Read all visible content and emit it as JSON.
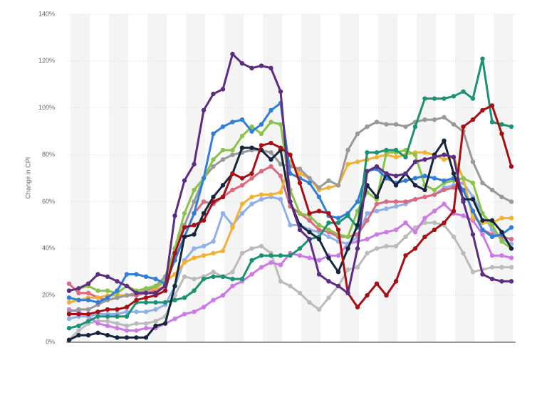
{
  "chart_data": {
    "type": "line",
    "y_label": "Change in CPI",
    "ylim": [
      0,
      140
    ],
    "yticks": [
      {
        "value": 0,
        "label": "0%"
      },
      {
        "value": 20,
        "label": "20%"
      },
      {
        "value": 40,
        "label": "40%"
      },
      {
        "value": 60,
        "label": "60%"
      },
      {
        "value": 80,
        "label": "80%"
      },
      {
        "value": 100,
        "label": "100%"
      },
      {
        "value": 120,
        "label": "120%"
      },
      {
        "value": 140,
        "label": "140%"
      }
    ],
    "grid": true,
    "series": [
      {
        "color": "#bbbbbb",
        "values": [
          1,
          5,
          8,
          9,
          9,
          8,
          7,
          8,
          8,
          9,
          11,
          20,
          28,
          27,
          28,
          30,
          28,
          30,
          38,
          40,
          41,
          38,
          26,
          24,
          21,
          17,
          14,
          19,
          24,
          31,
          32,
          38,
          40,
          41,
          41,
          45,
          49,
          51,
          51,
          50,
          45,
          38,
          30,
          31,
          32,
          32,
          32
        ]
      },
      {
        "color": "#cc7ae6",
        "values": [
          14,
          13,
          11,
          8,
          7,
          6,
          5,
          5,
          6,
          6,
          8,
          10,
          12,
          13,
          15,
          18,
          20,
          24,
          26,
          29,
          32,
          34,
          33,
          38,
          37,
          36,
          35,
          37,
          37,
          42,
          43,
          44,
          46,
          47,
          48,
          51,
          47,
          53,
          56,
          59,
          55,
          54,
          52,
          46,
          37,
          37,
          36
        ]
      },
      {
        "color": "#8fb0ea",
        "values": [
          10,
          11,
          11,
          12,
          12,
          12,
          13,
          13,
          13,
          14,
          16,
          24,
          35,
          40,
          41,
          43,
          55,
          50,
          55,
          59,
          61,
          62,
          61,
          50,
          50,
          48,
          47,
          45,
          43,
          42,
          45,
          55,
          56,
          57,
          58,
          59,
          61,
          62,
          63,
          66,
          67,
          68,
          62,
          55,
          48,
          44,
          42
        ]
      },
      {
        "color": "#d96a80",
        "values": [
          25,
          21,
          21,
          19,
          18,
          19,
          20,
          20,
          21,
          22,
          24,
          36,
          45,
          55,
          60,
          59,
          62,
          65,
          67,
          70,
          73,
          75,
          71,
          58,
          55,
          52,
          48,
          47,
          45,
          45,
          46,
          52,
          59,
          60,
          60,
          60,
          61,
          62,
          63,
          65,
          66,
          65,
          56,
          48,
          46,
          45,
          44
        ]
      },
      {
        "color": "#f2b134",
        "values": [
          17,
          18,
          19,
          19,
          20,
          20,
          20,
          21,
          22,
          23,
          26,
          29,
          34,
          36,
          37,
          38,
          39,
          49,
          59,
          62,
          63,
          63,
          64,
          77,
          72,
          70,
          65,
          66,
          67,
          76,
          77,
          78,
          79,
          80,
          79,
          80,
          81,
          81,
          80,
          78,
          79,
          70,
          53,
          51,
          51,
          53,
          53
        ]
      },
      {
        "color": "#999999",
        "values": [
          13,
          14,
          14,
          16,
          18,
          19,
          20,
          21,
          22,
          24,
          28,
          40,
          50,
          60,
          70,
          75,
          78,
          80,
          81,
          82,
          82,
          81,
          76,
          75,
          74,
          70,
          66,
          69,
          67,
          82,
          89,
          92,
          94,
          93,
          93,
          92,
          94,
          95,
          95,
          96,
          93,
          90,
          77,
          68,
          65,
          62,
          60
        ]
      },
      {
        "color": "#8bc34a",
        "values": [
          22,
          23,
          24,
          22,
          22,
          21,
          24,
          22,
          23,
          24,
          26,
          40,
          55,
          65,
          70,
          78,
          82,
          82,
          88,
          92,
          89,
          94,
          93,
          65,
          55,
          54,
          50,
          48,
          46,
          45,
          56,
          64,
          61,
          81,
          81,
          82,
          80,
          67,
          65,
          68,
          69,
          70,
          68,
          55,
          50,
          43,
          40
        ]
      },
      {
        "color": "#2f7ed8",
        "values": [
          19,
          18,
          18,
          17,
          19,
          22,
          29,
          29,
          28,
          27,
          25,
          35,
          45,
          55,
          70,
          89,
          92,
          94,
          95,
          90,
          93,
          99,
          102,
          72,
          70,
          68,
          62,
          54,
          53,
          55,
          60,
          73,
          74,
          70,
          68,
          69,
          70,
          71,
          70,
          69,
          70,
          65,
          56,
          48,
          45,
          46,
          49
        ]
      },
      {
        "color": "#1a9273",
        "values": [
          6,
          7,
          9,
          11,
          11,
          11,
          11,
          17,
          17,
          17,
          17,
          18,
          19,
          22,
          27,
          28,
          28,
          27,
          27,
          35,
          37,
          37,
          37,
          37,
          40,
          44,
          45,
          51,
          51,
          54,
          49,
          81,
          81,
          82,
          82,
          79,
          92,
          104,
          104,
          104,
          105,
          107,
          104,
          121,
          94,
          93,
          92
        ]
      },
      {
        "color": "#16263d",
        "values": [
          1,
          3,
          3,
          4,
          3,
          2,
          2,
          2,
          2,
          7,
          8,
          24,
          45,
          46,
          55,
          62,
          67,
          72,
          83,
          83,
          82,
          78,
          82,
          60,
          50,
          47,
          44,
          36,
          30,
          40,
          50,
          67,
          62,
          72,
          67,
          72,
          67,
          65,
          80,
          86,
          72,
          61,
          61,
          52,
          52,
          47,
          40
        ]
      },
      {
        "color": "#a50f15",
        "values": [
          12,
          12,
          12,
          13,
          14,
          14,
          15,
          18,
          19,
          20,
          22,
          38,
          49,
          50,
          52,
          60,
          62,
          72,
          70,
          72,
          84,
          85,
          83,
          80,
          68,
          55,
          56,
          55,
          48,
          21,
          15,
          20,
          25,
          20,
          26,
          37,
          40,
          45,
          48,
          51,
          56,
          92,
          95,
          99,
          101,
          89,
          75
        ]
      },
      {
        "color": "#5c2d82",
        "values": [
          22,
          23,
          25,
          29,
          28,
          26,
          24,
          21,
          21,
          21,
          24,
          54,
          69,
          76,
          99,
          106,
          108,
          123,
          119,
          117,
          118,
          117,
          107,
          60,
          48,
          44,
          29,
          26,
          24,
          21,
          40,
          73,
          75,
          72,
          71,
          72,
          77,
          78,
          79,
          80,
          79,
          60,
          46,
          29,
          27,
          26,
          26
        ]
      }
    ]
  }
}
